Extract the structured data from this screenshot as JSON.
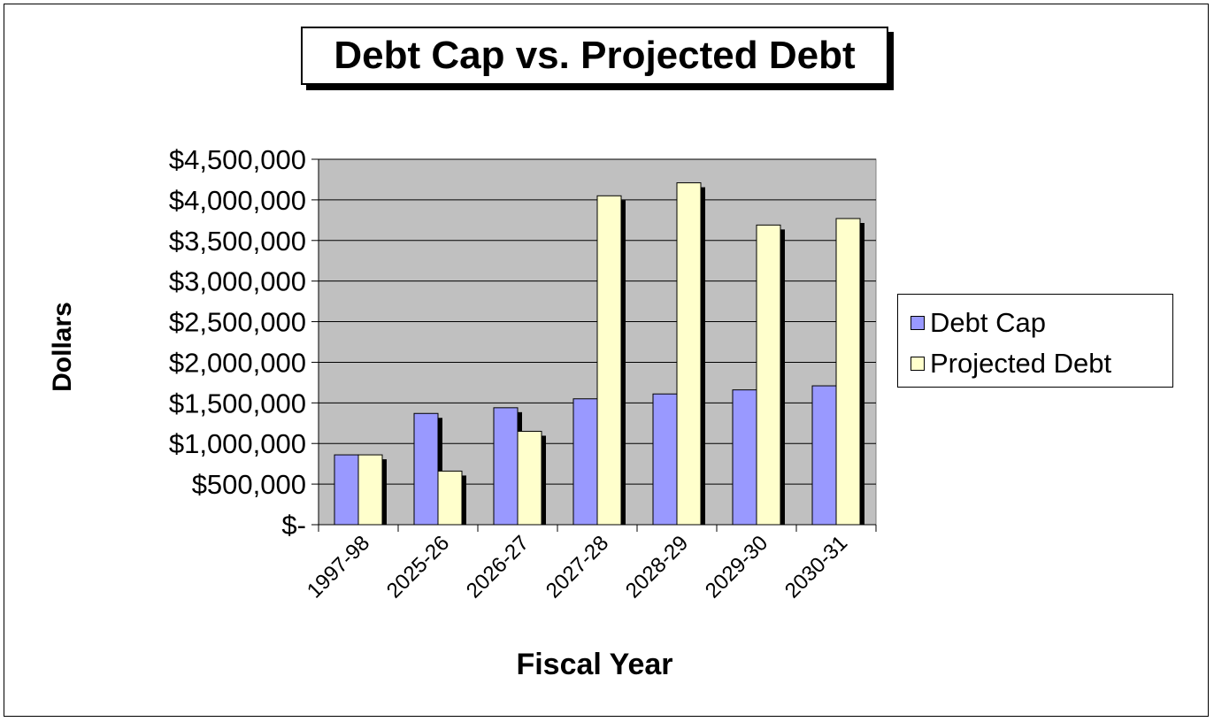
{
  "chart_data": {
    "type": "bar",
    "title": "Debt Cap vs. Projected Debt",
    "xlabel": "Fiscal Year",
    "ylabel": "Dollars",
    "ylim": [
      0,
      4500000
    ],
    "yticks": [
      0,
      500000,
      1000000,
      1500000,
      2000000,
      2500000,
      3000000,
      3500000,
      4000000,
      4500000
    ],
    "ytick_labels": [
      "$-",
      "$500,000",
      "$1,000,000",
      "$1,500,000",
      "$2,000,000",
      "$2,500,000",
      "$3,000,000",
      "$3,500,000",
      "$4,000,000",
      "$4,500,000"
    ],
    "categories": [
      "1997-98",
      "2025-26",
      "2026-27",
      "2027-28",
      "2028-29",
      "2029-30",
      "2030-31"
    ],
    "series": [
      {
        "name": "Debt Cap",
        "color": "#9999ff",
        "values": [
          860000,
          1370000,
          1440000,
          1550000,
          1610000,
          1660000,
          1710000
        ]
      },
      {
        "name": "Projected Debt",
        "color": "#ffffcc",
        "values": [
          860000,
          660000,
          1150000,
          4050000,
          4210000,
          3690000,
          3770000
        ]
      }
    ],
    "grid": true,
    "plot_background": "#c0c0c0",
    "legend_position": "right"
  }
}
